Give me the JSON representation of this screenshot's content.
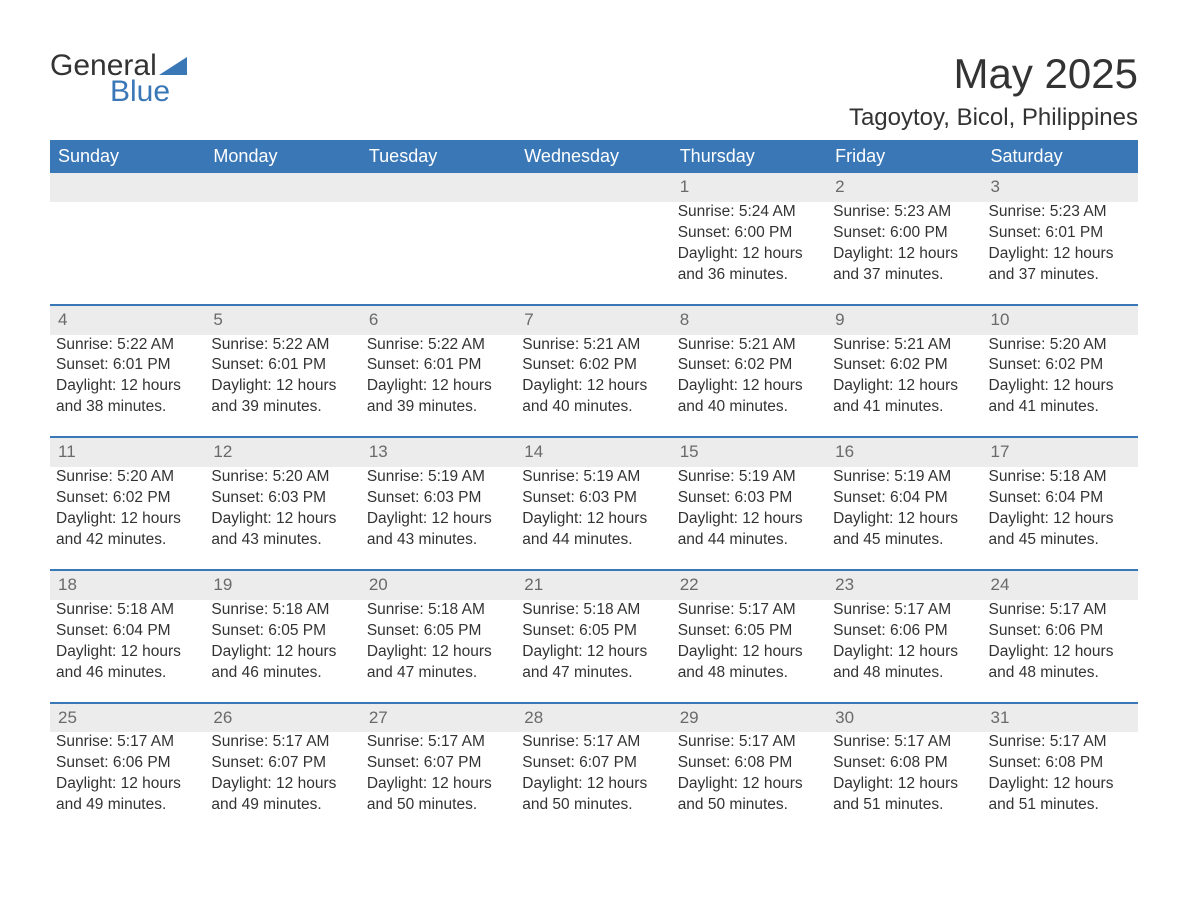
{
  "logo": {
    "word1": "General",
    "word2": "Blue"
  },
  "title": "May 2025",
  "location": "Tagoytoy, Bicol, Philippines",
  "colors": {
    "header_bg": "#3a77b7",
    "header_text": "#ffffff",
    "daynum_bg": "#ececec",
    "daynum_text": "#6a6a6a",
    "body_text": "#333333",
    "page_bg": "#ffffff",
    "separator": "#3a77b7",
    "logo_accent": "#3a77b7"
  },
  "layout": {
    "columns": 7,
    "font_family": "Arial",
    "title_fontsize": 42,
    "location_fontsize": 24,
    "header_fontsize": 18,
    "body_fontsize": 15.5,
    "daynum_fontsize": 17
  },
  "day_headers": [
    "Sunday",
    "Monday",
    "Tuesday",
    "Wednesday",
    "Thursday",
    "Friday",
    "Saturday"
  ],
  "weeks": [
    {
      "days": [
        null,
        null,
        null,
        null,
        {
          "n": "1",
          "sunrise": "5:24 AM",
          "sunset": "6:00 PM",
          "daylight": "12 hours and 36 minutes."
        },
        {
          "n": "2",
          "sunrise": "5:23 AM",
          "sunset": "6:00 PM",
          "daylight": "12 hours and 37 minutes."
        },
        {
          "n": "3",
          "sunrise": "5:23 AM",
          "sunset": "6:01 PM",
          "daylight": "12 hours and 37 minutes."
        }
      ]
    },
    {
      "days": [
        {
          "n": "4",
          "sunrise": "5:22 AM",
          "sunset": "6:01 PM",
          "daylight": "12 hours and 38 minutes."
        },
        {
          "n": "5",
          "sunrise": "5:22 AM",
          "sunset": "6:01 PM",
          "daylight": "12 hours and 39 minutes."
        },
        {
          "n": "6",
          "sunrise": "5:22 AM",
          "sunset": "6:01 PM",
          "daylight": "12 hours and 39 minutes."
        },
        {
          "n": "7",
          "sunrise": "5:21 AM",
          "sunset": "6:02 PM",
          "daylight": "12 hours and 40 minutes."
        },
        {
          "n": "8",
          "sunrise": "5:21 AM",
          "sunset": "6:02 PM",
          "daylight": "12 hours and 40 minutes."
        },
        {
          "n": "9",
          "sunrise": "5:21 AM",
          "sunset": "6:02 PM",
          "daylight": "12 hours and 41 minutes."
        },
        {
          "n": "10",
          "sunrise": "5:20 AM",
          "sunset": "6:02 PM",
          "daylight": "12 hours and 41 minutes."
        }
      ]
    },
    {
      "days": [
        {
          "n": "11",
          "sunrise": "5:20 AM",
          "sunset": "6:02 PM",
          "daylight": "12 hours and 42 minutes."
        },
        {
          "n": "12",
          "sunrise": "5:20 AM",
          "sunset": "6:03 PM",
          "daylight": "12 hours and 43 minutes."
        },
        {
          "n": "13",
          "sunrise": "5:19 AM",
          "sunset": "6:03 PM",
          "daylight": "12 hours and 43 minutes."
        },
        {
          "n": "14",
          "sunrise": "5:19 AM",
          "sunset": "6:03 PM",
          "daylight": "12 hours and 44 minutes."
        },
        {
          "n": "15",
          "sunrise": "5:19 AM",
          "sunset": "6:03 PM",
          "daylight": "12 hours and 44 minutes."
        },
        {
          "n": "16",
          "sunrise": "5:19 AM",
          "sunset": "6:04 PM",
          "daylight": "12 hours and 45 minutes."
        },
        {
          "n": "17",
          "sunrise": "5:18 AM",
          "sunset": "6:04 PM",
          "daylight": "12 hours and 45 minutes."
        }
      ]
    },
    {
      "days": [
        {
          "n": "18",
          "sunrise": "5:18 AM",
          "sunset": "6:04 PM",
          "daylight": "12 hours and 46 minutes."
        },
        {
          "n": "19",
          "sunrise": "5:18 AM",
          "sunset": "6:05 PM",
          "daylight": "12 hours and 46 minutes."
        },
        {
          "n": "20",
          "sunrise": "5:18 AM",
          "sunset": "6:05 PM",
          "daylight": "12 hours and 47 minutes."
        },
        {
          "n": "21",
          "sunrise": "5:18 AM",
          "sunset": "6:05 PM",
          "daylight": "12 hours and 47 minutes."
        },
        {
          "n": "22",
          "sunrise": "5:17 AM",
          "sunset": "6:05 PM",
          "daylight": "12 hours and 48 minutes."
        },
        {
          "n": "23",
          "sunrise": "5:17 AM",
          "sunset": "6:06 PM",
          "daylight": "12 hours and 48 minutes."
        },
        {
          "n": "24",
          "sunrise": "5:17 AM",
          "sunset": "6:06 PM",
          "daylight": "12 hours and 48 minutes."
        }
      ]
    },
    {
      "days": [
        {
          "n": "25",
          "sunrise": "5:17 AM",
          "sunset": "6:06 PM",
          "daylight": "12 hours and 49 minutes."
        },
        {
          "n": "26",
          "sunrise": "5:17 AM",
          "sunset": "6:07 PM",
          "daylight": "12 hours and 49 minutes."
        },
        {
          "n": "27",
          "sunrise": "5:17 AM",
          "sunset": "6:07 PM",
          "daylight": "12 hours and 50 minutes."
        },
        {
          "n": "28",
          "sunrise": "5:17 AM",
          "sunset": "6:07 PM",
          "daylight": "12 hours and 50 minutes."
        },
        {
          "n": "29",
          "sunrise": "5:17 AM",
          "sunset": "6:08 PM",
          "daylight": "12 hours and 50 minutes."
        },
        {
          "n": "30",
          "sunrise": "5:17 AM",
          "sunset": "6:08 PM",
          "daylight": "12 hours and 51 minutes."
        },
        {
          "n": "31",
          "sunrise": "5:17 AM",
          "sunset": "6:08 PM",
          "daylight": "12 hours and 51 minutes."
        }
      ]
    }
  ],
  "labels": {
    "sunrise_prefix": "Sunrise: ",
    "sunset_prefix": "Sunset: ",
    "daylight_prefix": "Daylight: "
  }
}
